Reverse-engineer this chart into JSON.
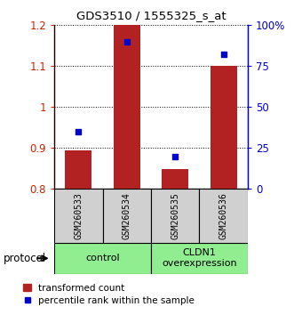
{
  "title": "GDS3510 / 1555325_s_at",
  "samples": [
    "GSM260533",
    "GSM260534",
    "GSM260535",
    "GSM260536"
  ],
  "bar_values": [
    0.895,
    1.2,
    0.848,
    1.1
  ],
  "percentile_values": [
    35,
    90,
    20,
    82
  ],
  "ylim_left": [
    0.8,
    1.2
  ],
  "ylim_right": [
    0,
    100
  ],
  "yticks_left": [
    0.8,
    0.9,
    1.0,
    1.1,
    1.2
  ],
  "yticks_right": [
    0,
    25,
    50,
    75,
    100
  ],
  "ytick_labels_right": [
    "0",
    "25",
    "50",
    "75",
    "100%"
  ],
  "bar_color": "#b22222",
  "dot_color": "#0000cd",
  "bar_width": 0.55,
  "groups": [
    {
      "label": "control",
      "samples": [
        0,
        1
      ],
      "color": "#90ee90"
    },
    {
      "label": "CLDN1\noverexpression",
      "samples": [
        2,
        3
      ],
      "color": "#90ee90"
    }
  ],
  "group_label": "protocol",
  "legend_bar_label": "transformed count",
  "legend_dot_label": "percentile rank within the sample",
  "left_axis_color": "#cc2200",
  "right_axis_color": "#0000cc",
  "figsize": [
    3.4,
    3.54
  ],
  "dpi": 100
}
